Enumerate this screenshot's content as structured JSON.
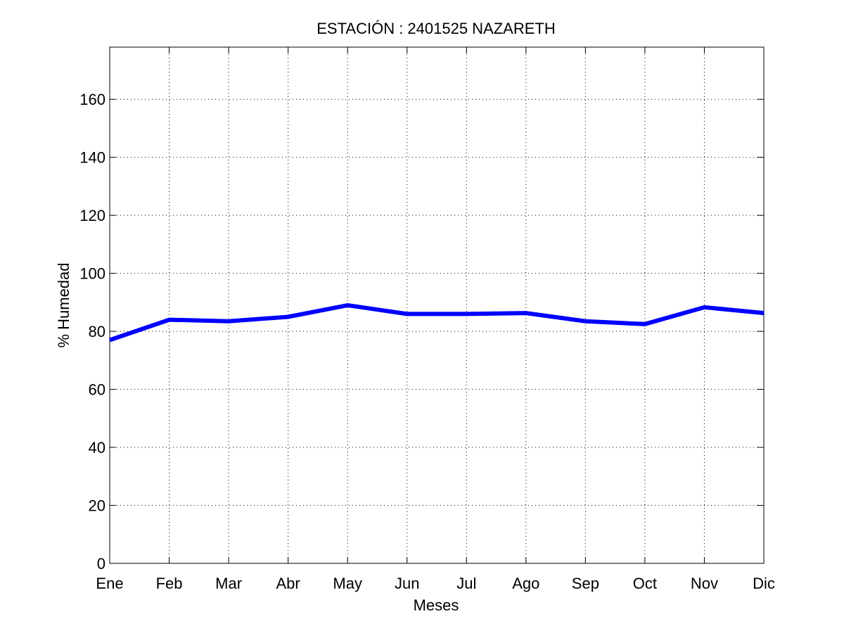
{
  "chart_data": {
    "type": "line",
    "title": "ESTACIÓN :  2401525  NAZARETH",
    "xlabel": "Meses",
    "ylabel": "% Humedad",
    "categories": [
      "Ene",
      "Feb",
      "Mar",
      "Abr",
      "May",
      "Jun",
      "Jul",
      "Ago",
      "Sep",
      "Oct",
      "Nov",
      "Dic"
    ],
    "series": [
      {
        "values": [
          77,
          84,
          83.5,
          85,
          89,
          86,
          86,
          86.3,
          83.5,
          82.5,
          88.3,
          86.3
        ]
      }
    ],
    "ylim": [
      0,
      178
    ],
    "yticks": [
      0,
      20,
      40,
      60,
      80,
      100,
      120,
      140,
      160
    ],
    "grid": true,
    "line_color": "#0000ff"
  }
}
